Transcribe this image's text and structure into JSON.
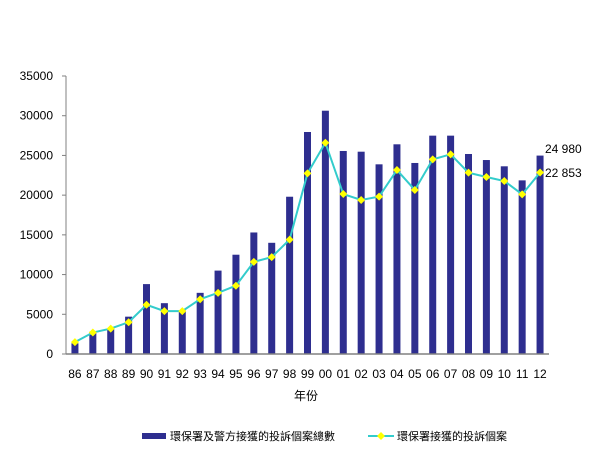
{
  "chart_data": {
    "type": "bar+line",
    "title": "",
    "xlabel": "年份",
    "ylabel": "",
    "ylim": [
      0,
      35000
    ],
    "yticks": [
      0,
      5000,
      10000,
      15000,
      20000,
      25000,
      30000,
      35000
    ],
    "grid": false,
    "legend_placement": "bottom",
    "categories": [
      "86",
      "87",
      "88",
      "89",
      "90",
      "91",
      "92",
      "93",
      "94",
      "95",
      "96",
      "97",
      "98",
      "99",
      "00",
      "01",
      "02",
      "03",
      "04",
      "05",
      "06",
      "07",
      "08",
      "09",
      "10",
      "11",
      "12"
    ],
    "series": [
      {
        "name": "環保署及警方接獲的投訴個案總數",
        "type": "bar",
        "color": "#2e2e8f",
        "values": [
          1350,
          2800,
          3200,
          4700,
          8800,
          6400,
          5500,
          7700,
          10500,
          12500,
          15300,
          14000,
          19800,
          27950,
          30630,
          25560,
          25470,
          23880,
          26400,
          24050,
          27490,
          27490,
          25180,
          24420,
          23630,
          21860,
          24980
        ]
      },
      {
        "name": "環保署接獲的投訴個案",
        "type": "line",
        "color": "#33cccc",
        "marker_color": "#ffff00",
        "values": [
          1500,
          2700,
          3200,
          4000,
          6200,
          5400,
          5400,
          6900,
          7700,
          8600,
          11600,
          12200,
          14400,
          22740,
          26600,
          20140,
          19390,
          19810,
          23160,
          20650,
          24500,
          25140,
          22830,
          22280,
          21780,
          20100,
          22853
        ]
      }
    ],
    "annotations": [
      "24 980",
      "22 853"
    ]
  }
}
